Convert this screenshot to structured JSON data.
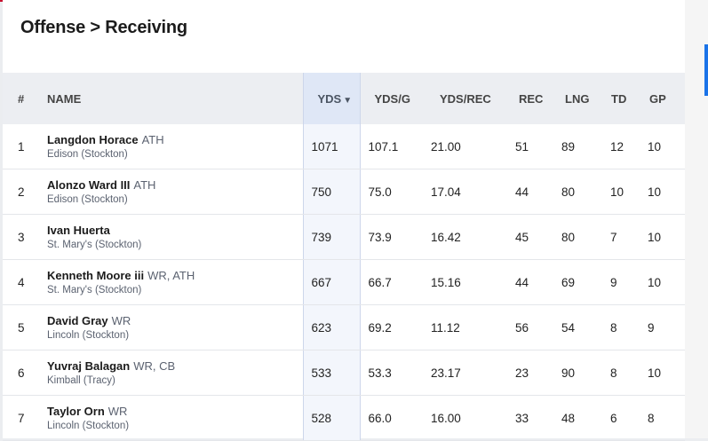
{
  "page": {
    "title": "Offense > Receiving"
  },
  "table": {
    "headers": {
      "rank": "#",
      "name": "NAME",
      "yds": "YDS",
      "sort_indicator": "▼",
      "ydsg": "YDS/G",
      "ydsrec": "YDS/REC",
      "rec": "REC",
      "lng": "LNG",
      "td": "TD",
      "gp": "GP"
    },
    "rows": [
      {
        "rank": "1",
        "name": "Langdon Horace",
        "pos": "ATH",
        "school": "Edison (Stockton)",
        "yds": "1071",
        "ydsg": "107.1",
        "ydsrec": "21.00",
        "rec": "51",
        "lng": "89",
        "td": "12",
        "gp": "10"
      },
      {
        "rank": "2",
        "name": "Alonzo Ward III",
        "pos": "ATH",
        "school": "Edison (Stockton)",
        "yds": "750",
        "ydsg": "75.0",
        "ydsrec": "17.04",
        "rec": "44",
        "lng": "80",
        "td": "10",
        "gp": "10"
      },
      {
        "rank": "3",
        "name": "Ivan Huerta",
        "pos": "",
        "school": "St. Mary's (Stockton)",
        "yds": "739",
        "ydsg": "73.9",
        "ydsrec": "16.42",
        "rec": "45",
        "lng": "80",
        "td": "7",
        "gp": "10"
      },
      {
        "rank": "4",
        "name": "Kenneth Moore iii",
        "pos": "WR, ATH",
        "school": "St. Mary's (Stockton)",
        "yds": "667",
        "ydsg": "66.7",
        "ydsrec": "15.16",
        "rec": "44",
        "lng": "69",
        "td": "9",
        "gp": "10"
      },
      {
        "rank": "5",
        "name": "David Gray",
        "pos": "WR",
        "school": "Lincoln (Stockton)",
        "yds": "623",
        "ydsg": "69.2",
        "ydsrec": "11.12",
        "rec": "56",
        "lng": "54",
        "td": "8",
        "gp": "9"
      },
      {
        "rank": "6",
        "name": "Yuvraj Balagan",
        "pos": "WR, CB",
        "school": "Kimball (Tracy)",
        "yds": "533",
        "ydsg": "53.3",
        "ydsrec": "23.17",
        "rec": "23",
        "lng": "90",
        "td": "8",
        "gp": "10"
      },
      {
        "rank": "7",
        "name": "Taylor Orn",
        "pos": "WR",
        "school": "Lincoln (Stockton)",
        "yds": "528",
        "ydsg": "66.0",
        "ydsrec": "16.00",
        "rec": "33",
        "lng": "48",
        "td": "6",
        "gp": "8"
      }
    ]
  },
  "colors": {
    "accent_red": "#c8102e",
    "sorted_column": "#dfe7f6",
    "scroll_accent": "#1a73e8"
  }
}
